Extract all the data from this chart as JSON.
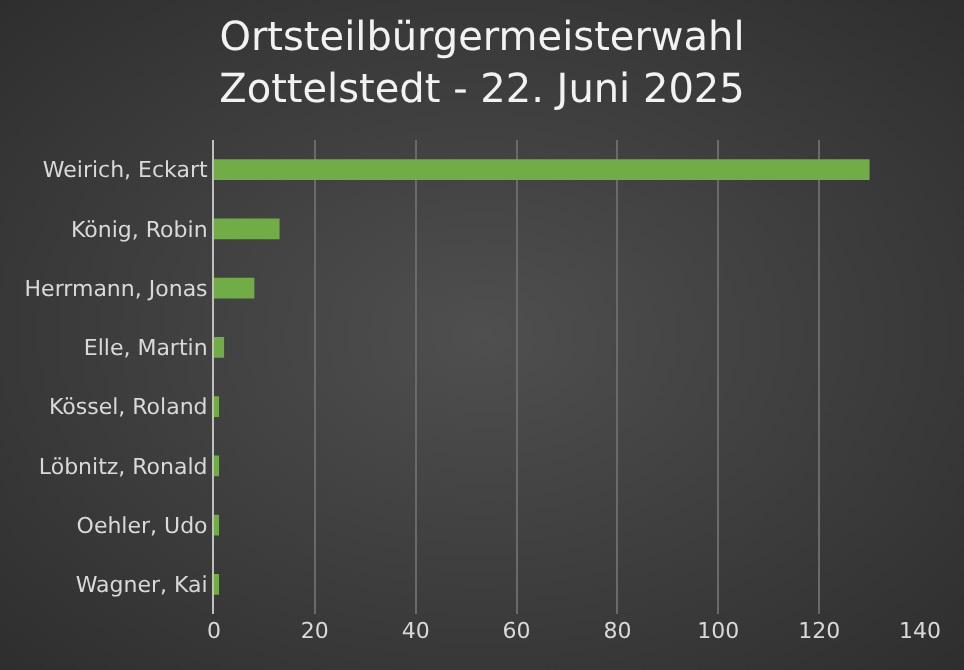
{
  "chart_data": {
    "type": "bar",
    "orientation": "horizontal",
    "title": "Ortsteilbürgermeisterwahl\nZottelstedt - 22. Juni 2025",
    "categories": [
      "Weirich, Eckart",
      "König, Robin",
      "Herrmann, Jonas",
      "Elle, Martin",
      "Kössel, Roland",
      "Löbnitz, Ronald",
      "Oehler, Udo",
      "Wagner, Kai"
    ],
    "values": [
      130,
      13,
      8,
      2,
      1,
      1,
      1,
      1
    ],
    "color": "#70ad47",
    "xlim": [
      0,
      140
    ],
    "xticks": [
      0,
      20,
      40,
      60,
      80,
      100,
      120,
      140
    ],
    "grid": "x"
  }
}
